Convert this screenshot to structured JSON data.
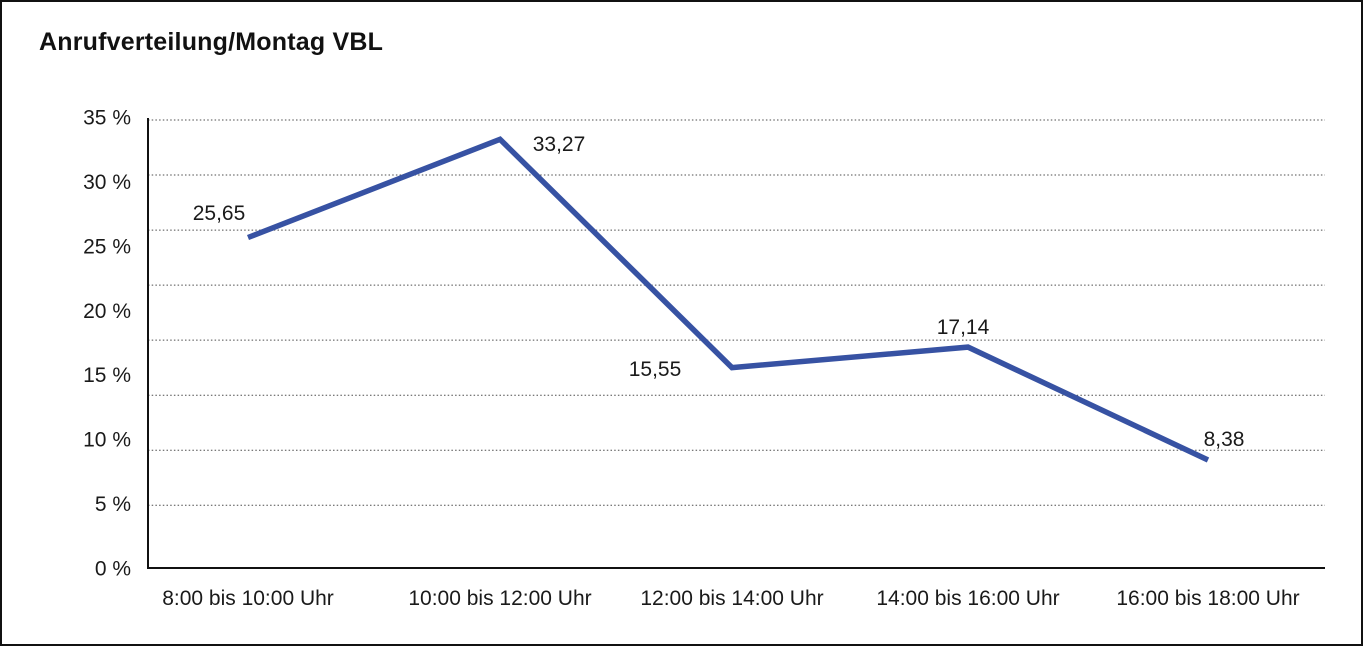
{
  "window": {
    "background": "#ffffff",
    "frame_border_color": "#111111"
  },
  "chart_data": {
    "type": "line",
    "title": "Anrufverteilung/Montag VBL",
    "categories": [
      "8:00 bis 10:00 Uhr",
      "10:00 bis 12:00 Uhr",
      "12:00 bis 14:00 Uhr",
      "14:00 bis 16:00 Uhr",
      "16:00 bis 18:00 Uhr"
    ],
    "values": [
      25.65,
      33.27,
      15.55,
      17.14,
      8.38
    ],
    "point_labels": [
      "25,65",
      "33,27",
      "15,55",
      "17,14",
      "8,38"
    ],
    "xlabel": "",
    "ylabel": "",
    "ylim": [
      0,
      35
    ],
    "y_tick_step": 5,
    "y_tick_labels": [
      "35 %",
      "30 %",
      "25 %",
      "20 %",
      "15 %",
      "10 %",
      "5 %",
      "0 %"
    ],
    "y_tick_values": [
      35,
      30,
      25,
      20,
      15,
      10,
      5,
      0
    ],
    "grid": "dotted-horizontal",
    "legend_position": "none",
    "line_color": "#3752A3",
    "grid_color": "#4d4d4d",
    "axis_color": "#111111",
    "text_color": "#1a1a1a"
  }
}
